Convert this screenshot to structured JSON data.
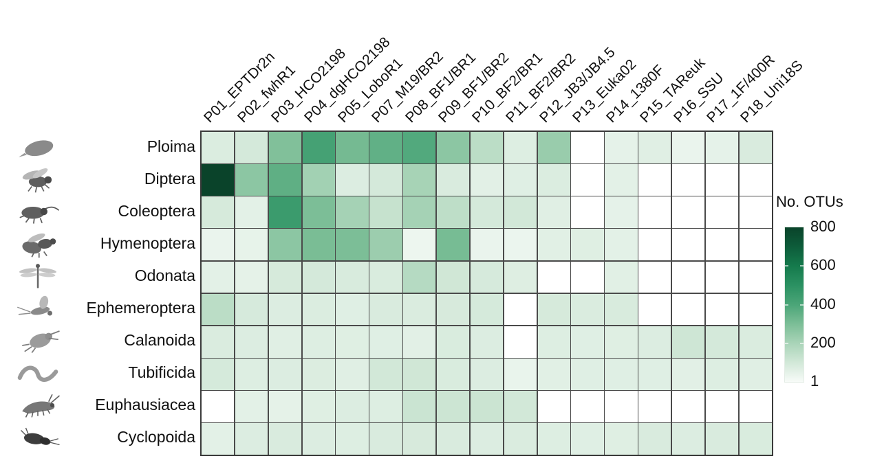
{
  "figure": {
    "background": "#ffffff",
    "grid_line_color": "#4a4a4a"
  },
  "legend": {
    "title": "No. OTUs",
    "ticks": [
      "800",
      "600",
      "400",
      "200",
      "1"
    ],
    "tick_values": [
      800,
      600,
      400,
      200,
      1
    ]
  },
  "chart_data": {
    "type": "heatmap",
    "title": "",
    "xlabel": "",
    "ylabel": "",
    "legend_position": "right",
    "columns": [
      "P01_EPTDr2n",
      "P02_fwhR1",
      "P03_HCO2198",
      "P04_dgHCO2198",
      "P05_LoboR1",
      "P07_M19/BR2",
      "P08_BF1/BR1",
      "P09_BF1/BR2",
      "P10_BF2/BR1",
      "P11_BF2/BR2",
      "P12_JB3/JB4.5",
      "P13_Euka02",
      "P14_1380F",
      "P15_TAReuk",
      "P16_SSU",
      "P17_1F/400R",
      "P18_Uni18S"
    ],
    "rows": [
      "Ploima",
      "Diptera",
      "Coleoptera",
      "Hymenoptera",
      "Odonata",
      "Ephemeroptera",
      "Calanoida",
      "Tubificida",
      "Euphausiacea",
      "Cyclopoida"
    ],
    "row_icons": [
      "rotifer-icon",
      "fly-icon",
      "beetle-icon",
      "wasp-icon",
      "dragonfly-icon",
      "mayfly-icon",
      "copepod-icon",
      "worm-icon",
      "krill-icon",
      "cyclopoid-icon"
    ],
    "values": [
      [
        75,
        95,
        290,
        420,
        315,
        355,
        385,
        265,
        155,
        70,
        235,
        null,
        48,
        62,
        36,
        48,
        82
      ],
      [
        800,
        265,
        360,
        215,
        72,
        95,
        205,
        82,
        58,
        64,
        76,
        null,
        55,
        null,
        null,
        null,
        null
      ],
      [
        90,
        55,
        450,
        300,
        210,
        130,
        210,
        150,
        95,
        100,
        62,
        null,
        48,
        null,
        null,
        null,
        null
      ],
      [
        35,
        45,
        265,
        305,
        300,
        230,
        28,
        310,
        35,
        33,
        60,
        65,
        55,
        null,
        null,
        null,
        null
      ],
      [
        55,
        50,
        90,
        95,
        85,
        80,
        170,
        105,
        88,
        68,
        null,
        null,
        60,
        null,
        null,
        null,
        null
      ],
      [
        155,
        88,
        72,
        75,
        64,
        82,
        78,
        87,
        92,
        null,
        90,
        78,
        84,
        null,
        null,
        null,
        null
      ],
      [
        78,
        73,
        62,
        70,
        66,
        64,
        58,
        80,
        72,
        null,
        70,
        64,
        66,
        73,
        110,
        95,
        78
      ],
      [
        92,
        70,
        72,
        74,
        62,
        100,
        105,
        80,
        73,
        38,
        60,
        64,
        64,
        64,
        56,
        70,
        62
      ],
      [
        null,
        55,
        50,
        65,
        72,
        70,
        120,
        115,
        118,
        100,
        null,
        null,
        null,
        null,
        null,
        null,
        null
      ],
      [
        55,
        72,
        82,
        73,
        70,
        82,
        87,
        82,
        72,
        78,
        70,
        64,
        66,
        82,
        72,
        82,
        80
      ]
    ],
    "scale": {
      "min": 1,
      "max": 800,
      "null_color": "#ffffff",
      "stops": [
        [
          1,
          "#f7fbf8"
        ],
        [
          100,
          "#d2e8d8"
        ],
        [
          200,
          "#a9d4b8"
        ],
        [
          300,
          "#7cbe97"
        ],
        [
          400,
          "#4ba578"
        ],
        [
          500,
          "#2b9162"
        ],
        [
          600,
          "#157a4c"
        ],
        [
          700,
          "#0d5c3a"
        ],
        [
          800,
          "#0a432a"
        ]
      ]
    }
  }
}
